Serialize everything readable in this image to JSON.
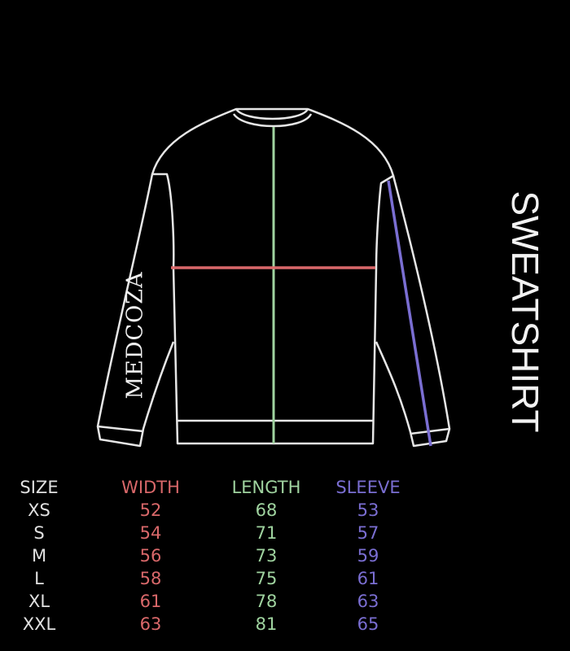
{
  "title": "SWEATSHIRT",
  "brand_logo_text": "MEDCOZA",
  "colors": {
    "background": "#000000",
    "outline": "#e6e6e6",
    "size": "#e0e0e0",
    "width": "#d9686a",
    "length": "#9fd39f",
    "sleeve": "#7a6ed2"
  },
  "table": {
    "headers": {
      "size": "SIZE",
      "width": "WIDTH",
      "length": "LENGTH",
      "sleeve": "SLEEVE"
    },
    "sizes": [
      "XS",
      "S",
      "M",
      "L",
      "XL",
      "XXL"
    ],
    "width": [
      "52",
      "54",
      "56",
      "58",
      "61",
      "63"
    ],
    "length": [
      "68",
      "71",
      "73",
      "75",
      "78",
      "81"
    ],
    "sleeve": [
      "53",
      "57",
      "59",
      "61",
      "63",
      "65"
    ]
  }
}
